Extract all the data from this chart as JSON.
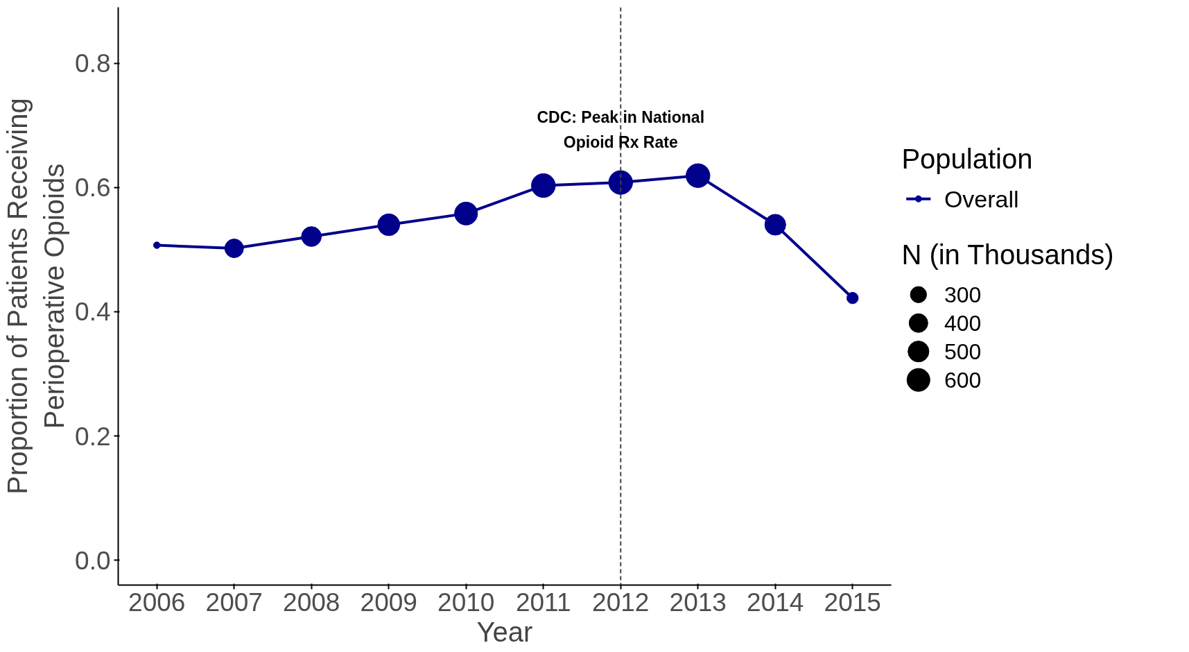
{
  "chart_data": {
    "type": "line",
    "xlabel": "Year",
    "ylabel": "Proportion of Patients Receiving\nPerioperative Opioids",
    "legend_title": "Population",
    "x": [
      2006,
      2007,
      2008,
      2009,
      2010,
      2011,
      2012,
      2013,
      2014,
      2015
    ],
    "series": [
      {
        "name": "Overall",
        "color": "#00008b",
        "values": [
          0.507,
          0.502,
          0.521,
          0.54,
          0.558,
          0.603,
          0.608,
          0.619,
          0.54,
          0.422
        ]
      },
      {
        "type": "bubble",
        "marker": "circle",
        "color": "#00008b",
        "values": [
          0.507,
          0.502,
          0.521,
          0.54,
          0.558,
          0.603,
          0.608,
          0.619,
          0.54,
          0.422
        ],
        "sizes": [
          50,
          400,
          450,
          550,
          600,
          650,
          650,
          650,
          500,
          150
        ]
      }
    ],
    "annotations": [
      "N (in Thousands)"
    ],
    "size_legend": [
      300,
      400,
      500,
      600
    ],
    "line_style": "solid",
    "xlim": [
      2005.5,
      2015.5
    ],
    "ylim": [
      -0.04,
      0.89
    ],
    "xticks": [
      2006,
      2007,
      2008,
      2009,
      2010,
      2011,
      2012,
      2013,
      2014,
      2015
    ],
    "yticks": [
      {
        "value": 0,
        "label": "0.0"
      },
      {
        "value": 0.2,
        "label": "0.2"
      },
      {
        "value": 0.4,
        "label": "0.4"
      },
      {
        "value": 0.6,
        "label": "0.6"
      },
      {
        "value": 0.8,
        "label": "0.8"
      }
    ],
    "ref_lines": [
      {
        "axis": "x",
        "value": 2012,
        "label": "CDC: Peak in National\nOpioid Rx Rate",
        "line_style": "dashed",
        "color": "#444444"
      }
    ],
    "grid": false,
    "legend": "right"
  }
}
